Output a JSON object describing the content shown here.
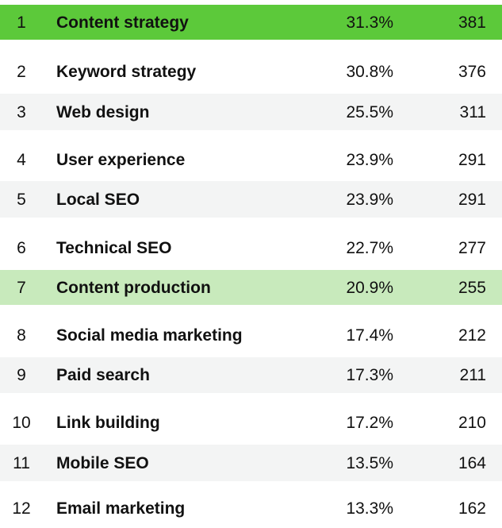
{
  "colors": {
    "highlight_strong": "#5cc93a",
    "highlight_light": "#c8eabc",
    "row_alt": "#f3f4f4",
    "row_base": "#ffffff"
  },
  "chart_data": {
    "type": "table",
    "columns": [
      "",
      "",
      "",
      ""
    ],
    "rows": [
      {
        "rank": "1",
        "name": "Content strategy",
        "percent": "31.3%",
        "count": "381"
      },
      {
        "rank": "2",
        "name": "Keyword strategy",
        "percent": "30.8%",
        "count": "376"
      },
      {
        "rank": "3",
        "name": "Web design",
        "percent": "25.5%",
        "count": "311"
      },
      {
        "rank": "4",
        "name": "User experience",
        "percent": "23.9%",
        "count": "291"
      },
      {
        "rank": "5",
        "name": "Local SEO",
        "percent": "23.9%",
        "count": "291"
      },
      {
        "rank": "6",
        "name": "Technical SEO",
        "percent": "22.7%",
        "count": "277"
      },
      {
        "rank": "7",
        "name": "Content production",
        "percent": "20.9%",
        "count": "255"
      },
      {
        "rank": "8",
        "name": "Social media marketing",
        "percent": "17.4%",
        "count": "212"
      },
      {
        "rank": "9",
        "name": "Paid search",
        "percent": "17.3%",
        "count": "211"
      },
      {
        "rank": "10",
        "name": "Link building",
        "percent": "17.2%",
        "count": "210"
      },
      {
        "rank": "11",
        "name": "Mobile SEO",
        "percent": "13.5%",
        "count": "164"
      },
      {
        "rank": "12",
        "name": "Email marketing",
        "percent": "13.3%",
        "count": "162"
      }
    ],
    "highlighted_rows": {
      "strong": [
        0
      ],
      "light": [
        6
      ]
    }
  }
}
